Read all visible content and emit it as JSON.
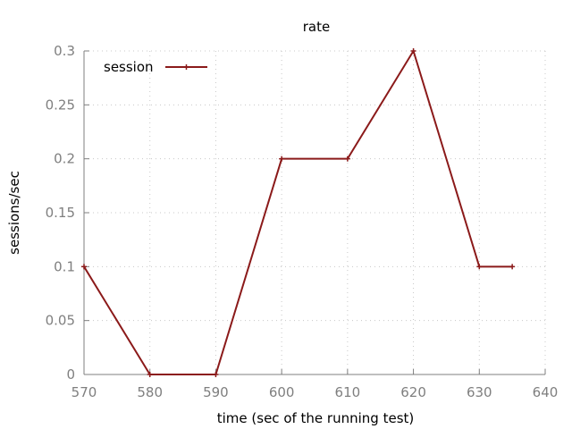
{
  "chart_data": {
    "type": "line",
    "title": "rate",
    "xlabel": "time (sec of the running test)",
    "ylabel": "sessions/sec",
    "xlim": [
      570,
      640
    ],
    "ylim": [
      0,
      0.3
    ],
    "xticks": [
      570,
      580,
      590,
      600,
      610,
      620,
      630,
      640
    ],
    "yticks": [
      0,
      0.05,
      0.1,
      0.15,
      0.2,
      0.25,
      0.3
    ],
    "xtick_labels": [
      "570",
      "580",
      "590",
      "600",
      "610",
      "620",
      "630",
      "640"
    ],
    "ytick_labels": [
      "0",
      "0.05",
      "0.1",
      "0.15",
      "0.2",
      "0.25",
      "0.3"
    ],
    "grid": true,
    "legend_position": "top-left",
    "series": [
      {
        "name": "session",
        "color": "#8b1a1a",
        "marker": "plus",
        "x": [
          570,
          580,
          590,
          600,
          610,
          620,
          630,
          635
        ],
        "y": [
          0.1,
          0,
          0,
          0.2,
          0.2,
          0.3,
          0.1,
          0.1
        ]
      }
    ]
  }
}
